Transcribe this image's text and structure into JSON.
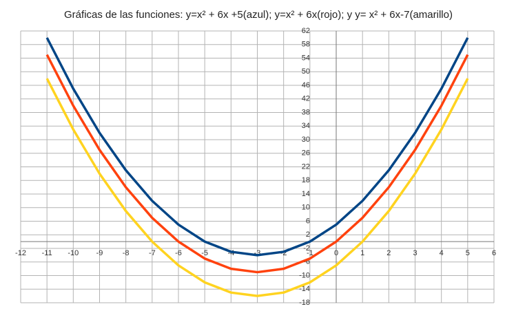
{
  "chart_data": {
    "type": "line",
    "title": "Gráficas de las funciones: y=x² + 6x +5(azul); y=x² + 6x(rojo); y y=  x² + 6x-7(amarillo)",
    "x": [
      -11,
      -10,
      -9,
      -8,
      -7,
      -6,
      -5,
      -4,
      -3,
      -2,
      -1,
      0,
      1,
      2,
      3,
      4,
      5
    ],
    "series": [
      {
        "color": "#004586",
        "values": [
          60,
          45,
          32,
          21,
          12,
          5,
          0,
          -3,
          -4,
          -3,
          0,
          5,
          12,
          21,
          32,
          45,
          60
        ]
      },
      {
        "color": "#ff420e",
        "values": [
          55,
          40,
          27,
          16,
          7,
          0,
          -5,
          -8,
          -9,
          -8,
          -5,
          0,
          7,
          16,
          27,
          40,
          55
        ]
      },
      {
        "color": "#ffd320",
        "values": [
          48,
          33,
          20,
          9,
          0,
          -7,
          -12,
          -15,
          -16,
          -15,
          -12,
          -7,
          0,
          9,
          20,
          33,
          48
        ]
      }
    ],
    "xlim": [
      -12,
      6
    ],
    "xticks": [
      -12,
      -11,
      -10,
      -9,
      -8,
      -7,
      -6,
      -5,
      -4,
      -3,
      -2,
      -1,
      0,
      1,
      2,
      3,
      4,
      5,
      6
    ],
    "ylim": [
      -18,
      62
    ],
    "yticks": [
      -18,
      -14,
      -10,
      -6,
      -2,
      2,
      6,
      10,
      14,
      18,
      22,
      26,
      30,
      34,
      38,
      42,
      46,
      50,
      54,
      58,
      62
    ],
    "grid": true
  }
}
